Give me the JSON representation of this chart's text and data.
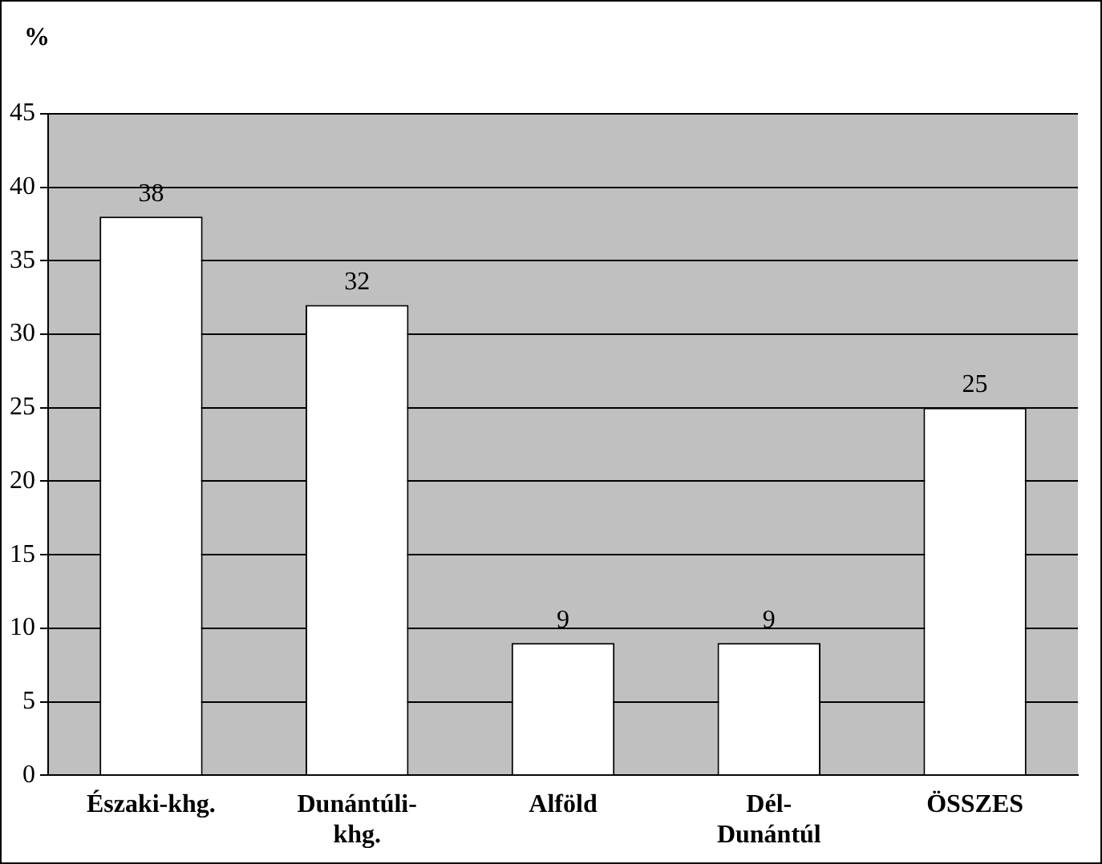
{
  "chart_data": {
    "type": "bar",
    "ylabel": "%",
    "categories": [
      "Északi-khg.",
      "Dunántúli-khg.",
      "Alföld",
      "Dél-Dunántúl",
      "ÖSSZES"
    ],
    "values": [
      38,
      32,
      9,
      9,
      25
    ],
    "color": "#ffffff",
    "ylim": [
      0,
      45
    ],
    "yticks": [
      0,
      5,
      10,
      15,
      20,
      25,
      30,
      35,
      40,
      45
    ],
    "grid": "y",
    "data_labels": true
  }
}
